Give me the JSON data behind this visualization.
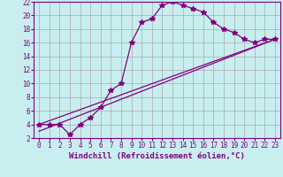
{
  "background_color": "#c8eef0",
  "grid_color": "#aaaaaa",
  "line_color": "#800080",
  "xlabel": "Windchill (Refroidissement éolien,°C)",
  "xlim": [
    -0.5,
    23.5
  ],
  "ylim": [
    2,
    22
  ],
  "yticks": [
    2,
    4,
    6,
    8,
    10,
    12,
    14,
    16,
    18,
    20,
    22
  ],
  "xticks": [
    0,
    1,
    2,
    3,
    4,
    5,
    6,
    7,
    8,
    9,
    10,
    11,
    12,
    13,
    14,
    15,
    16,
    17,
    18,
    19,
    20,
    21,
    22,
    23
  ],
  "series1_x": [
    0,
    1,
    2,
    3,
    4,
    5,
    6,
    7,
    8,
    9,
    10,
    11,
    12,
    13,
    14,
    15,
    16,
    17,
    18,
    19,
    20,
    21,
    22,
    23
  ],
  "series1_y": [
    4,
    4,
    4,
    2.5,
    4,
    5,
    6.5,
    9,
    10,
    16,
    19,
    19.5,
    21.5,
    22,
    21.5,
    21,
    20.5,
    19,
    18,
    17.5,
    16.5,
    16,
    16.5,
    16.5
  ],
  "series2_x": [
    0,
    23
  ],
  "series2_y": [
    4,
    16.5
  ],
  "series3_x": [
    0,
    23
  ],
  "series3_y": [
    3.0,
    16.5
  ],
  "title_color": "#800080",
  "tick_fontsize": 5.5,
  "xlabel_fontsize": 6.5
}
